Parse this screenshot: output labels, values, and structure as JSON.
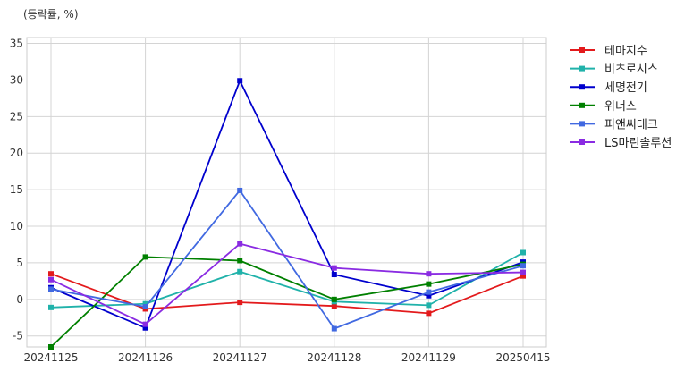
{
  "chart_data": {
    "type": "line",
    "unit_label": "(등락률, %)",
    "title": "",
    "xlabel": "",
    "ylabel": "",
    "categories": [
      "20241125",
      "20241126",
      "20241127",
      "20241128",
      "20241129",
      "20250415"
    ],
    "ylim": [
      -6.5,
      35.8
    ],
    "yticks": [
      -5,
      0,
      5,
      10,
      15,
      20,
      25,
      30,
      35
    ],
    "grid": true,
    "legend_position": "right",
    "series": [
      {
        "name": "테마지수",
        "color": "#e31a1c",
        "values": [
          3.5,
          -1.3,
          -0.4,
          -0.9,
          -1.9,
          3.2
        ]
      },
      {
        "name": "비츠로시스",
        "color": "#20b2aa",
        "values": [
          -1.1,
          -0.6,
          3.8,
          -0.3,
          -0.8,
          6.4
        ]
      },
      {
        "name": "세명전기",
        "color": "#0000cd",
        "values": [
          1.6,
          -3.9,
          29.9,
          3.4,
          0.5,
          5.1
        ]
      },
      {
        "name": "위너스",
        "color": "#008000",
        "values": [
          -6.5,
          5.8,
          5.3,
          0.0,
          2.1,
          4.8
        ]
      },
      {
        "name": "피앤씨테크",
        "color": "#4169e1",
        "values": [
          1.4,
          -1.0,
          14.9,
          -4.0,
          1.0,
          4.6
        ]
      },
      {
        "name": "LS마린솔루션",
        "color": "#8a2be2",
        "values": [
          2.7,
          -3.4,
          7.6,
          4.3,
          3.5,
          3.7
        ]
      }
    ]
  }
}
